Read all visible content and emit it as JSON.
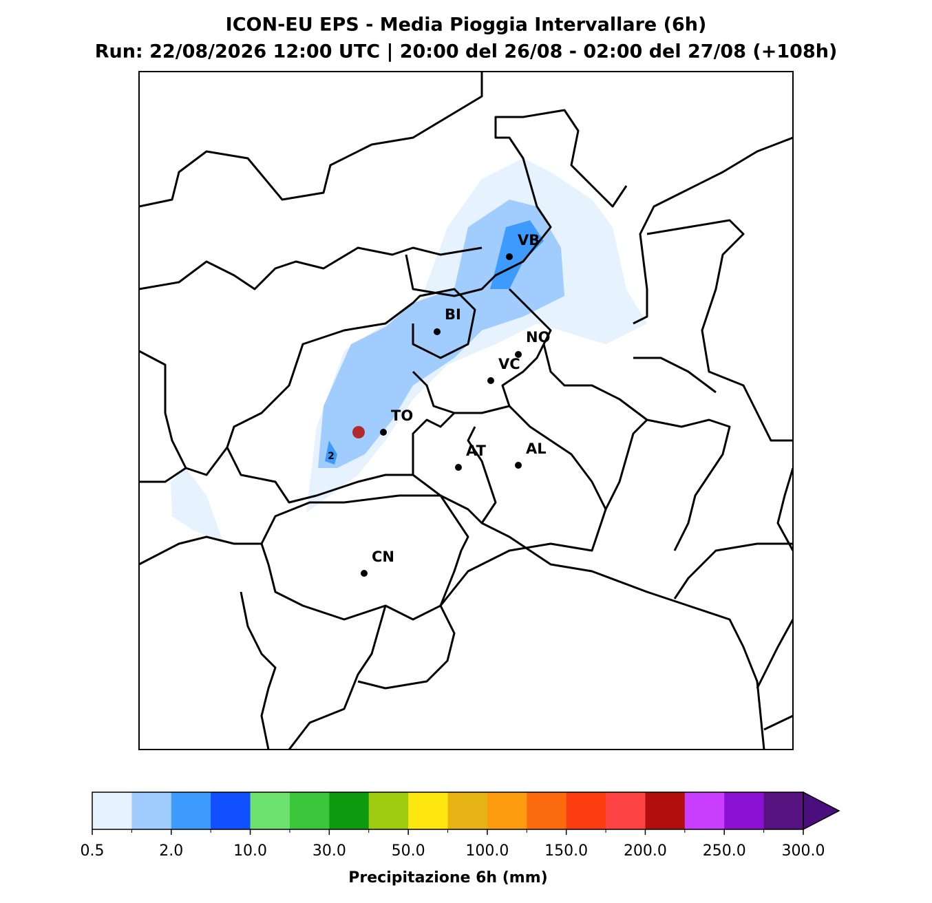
{
  "header": {
    "title": "ICON-EU EPS - Media Pioggia Intervallare (6h)",
    "subtitle": "Run: 22/08/2026 12:00 UTC | 20:00 del 26/08 - 02:00 del 27/08 (+108h)"
  },
  "map": {
    "cities": [
      "VB",
      "BI",
      "NO",
      "VC",
      "TO",
      "AT",
      "AL",
      "CN"
    ],
    "contour_label": "2"
  },
  "colorbar": {
    "label": "Precipitazione 6h (mm)",
    "colors": [
      "#e6f2fe",
      "#a0cdfd",
      "#3e9bfe",
      "#1050fe",
      "#6ee26e",
      "#3cc63c",
      "#0e9a0e",
      "#9ecb10",
      "#fde50f",
      "#e6b515",
      "#fd9b0f",
      "#fb6b10",
      "#fd3e10",
      "#fd4343",
      "#b20e0e",
      "#c93efd",
      "#8b12d5",
      "#56127f"
    ],
    "extend_color": "#4b0f7d",
    "ticks": [
      0.5,
      {
        "value": 2,
        "label": "2.0"
      },
      {
        "value": 10,
        "label": "10.0"
      },
      {
        "value": 30,
        "label": "30.0"
      },
      {
        "value": 50,
        "label": "50.0"
      },
      {
        "value": 100,
        "label": "100.0"
      },
      {
        "value": 150,
        "label": "150.0"
      },
      {
        "value": 200,
        "label": "200.0"
      },
      {
        "value": 250,
        "label": "250.0"
      },
      {
        "value": 300,
        "label": "300.0"
      }
    ]
  }
}
